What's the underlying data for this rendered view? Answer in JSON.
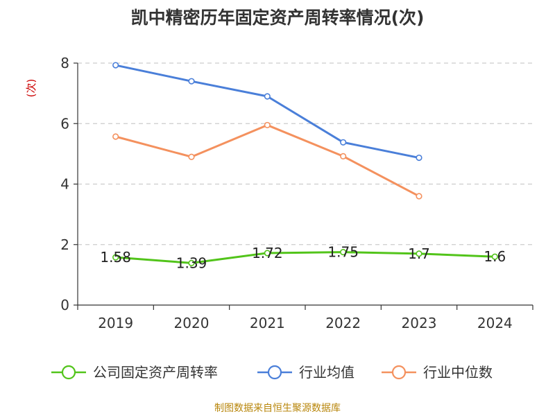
{
  "chart_data": {
    "type": "line",
    "title": "凯中精密历年固定资产周转率情况(次)",
    "ylabel": "(次)",
    "xlabel": "",
    "categories": [
      "2019",
      "2020",
      "2021",
      "2022",
      "2023",
      "2024"
    ],
    "ylim": [
      0,
      8
    ],
    "yticks": [
      0,
      2,
      4,
      6,
      8
    ],
    "grid": true,
    "legend_position": "bottom",
    "series": [
      {
        "name": "公司固定资产周转率",
        "color": "#52c41a",
        "values": [
          1.58,
          1.39,
          1.72,
          1.75,
          1.7,
          1.6
        ],
        "labels": [
          "1.58",
          "1.39",
          "1.72",
          "1.75",
          "1.7",
          "1.6"
        ]
      },
      {
        "name": "行业均值",
        "color": "#4a7fd9",
        "values": [
          7.93,
          7.4,
          6.9,
          5.38,
          4.87,
          null
        ]
      },
      {
        "name": "行业中位数",
        "color": "#f4915e",
        "values": [
          5.57,
          4.9,
          5.95,
          4.92,
          3.6,
          null
        ]
      }
    ]
  },
  "source": "制图数据来自恒生聚源数据库"
}
